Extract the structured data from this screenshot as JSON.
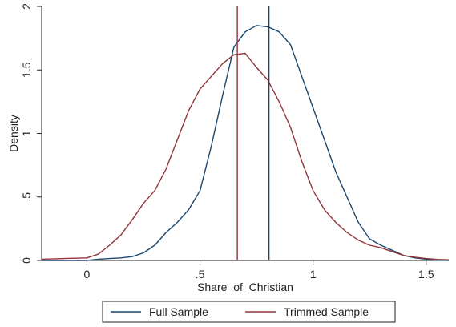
{
  "chart_data": {
    "type": "line",
    "title": "",
    "xlabel": "Share_of_Christian",
    "ylabel": "Density",
    "xlim": [
      -0.2,
      1.6
    ],
    "ylim": [
      0,
      2
    ],
    "x_ticks": [
      0,
      0.5,
      1,
      1.5
    ],
    "x_tick_labels": [
      "0",
      ".5",
      "1",
      "1.5"
    ],
    "y_ticks": [
      0,
      0.5,
      1,
      1.5,
      2
    ],
    "y_tick_labels": [
      "0",
      ".5",
      "1",
      "1.5",
      "2"
    ],
    "grid": false,
    "legend_position": "bottom",
    "series": [
      {
        "name": "Full Sample",
        "color": "#1a476f",
        "x": [
          -0.2,
          -0.1,
          0.0,
          0.05,
          0.1,
          0.15,
          0.2,
          0.25,
          0.3,
          0.35,
          0.4,
          0.45,
          0.5,
          0.55,
          0.6,
          0.65,
          0.7,
          0.75,
          0.8,
          0.85,
          0.9,
          0.95,
          1.0,
          1.05,
          1.1,
          1.15,
          1.2,
          1.25,
          1.3,
          1.35,
          1.4,
          1.45,
          1.5,
          1.55,
          1.6
        ],
        "y": [
          0.0,
          0.0,
          0.0,
          0.01,
          0.015,
          0.02,
          0.03,
          0.06,
          0.12,
          0.22,
          0.3,
          0.4,
          0.55,
          0.9,
          1.3,
          1.68,
          1.8,
          1.85,
          1.84,
          1.8,
          1.7,
          1.45,
          1.2,
          0.95,
          0.7,
          0.5,
          0.3,
          0.17,
          0.12,
          0.08,
          0.04,
          0.02,
          0.01,
          0.005,
          0.0
        ]
      },
      {
        "name": "Trimmed Sample",
        "color": "#90353b",
        "x": [
          -0.2,
          -0.1,
          0.0,
          0.05,
          0.1,
          0.15,
          0.2,
          0.25,
          0.3,
          0.35,
          0.4,
          0.45,
          0.5,
          0.55,
          0.6,
          0.65,
          0.7,
          0.75,
          0.8,
          0.85,
          0.9,
          0.95,
          1.0,
          1.05,
          1.1,
          1.15,
          1.2,
          1.25,
          1.3,
          1.35,
          1.4,
          1.45,
          1.5,
          1.55,
          1.6
        ],
        "y": [
          0.01,
          0.015,
          0.02,
          0.05,
          0.12,
          0.2,
          0.32,
          0.45,
          0.55,
          0.72,
          0.95,
          1.18,
          1.35,
          1.45,
          1.55,
          1.62,
          1.63,
          1.52,
          1.42,
          1.25,
          1.05,
          0.78,
          0.55,
          0.4,
          0.3,
          0.22,
          0.16,
          0.12,
          0.1,
          0.07,
          0.04,
          0.025,
          0.015,
          0.008,
          0.005
        ]
      }
    ],
    "vlines": [
      {
        "series": "Full Sample",
        "x": 0.805,
        "color": "#1a476f"
      },
      {
        "series": "Trimmed Sample",
        "x": 0.665,
        "color": "#90353b"
      }
    ]
  }
}
